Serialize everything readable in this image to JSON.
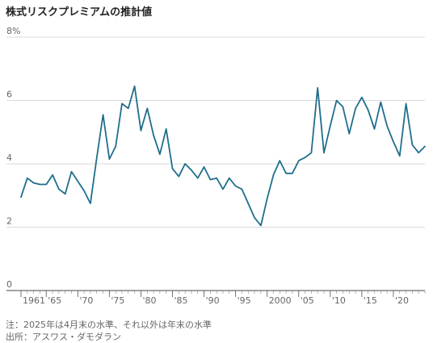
{
  "title": "株式リスクプレミアムの推計値",
  "chart_data": {
    "type": "line",
    "title": "株式リスクプレミアムの推計値",
    "xlabel": "",
    "ylabel": "",
    "xlim": [
      1961,
      2025
    ],
    "ylim": [
      0,
      8
    ],
    "y_ticks": [
      {
        "value": 8,
        "label": "8%"
      },
      {
        "value": 6,
        "label": "6"
      },
      {
        "value": 4,
        "label": "4"
      },
      {
        "value": 2,
        "label": "2"
      },
      {
        "value": 0,
        "label": "0"
      }
    ],
    "x_ticks": [
      {
        "value": 1961,
        "label": "1961"
      },
      {
        "value": 1965,
        "label": "'65"
      },
      {
        "value": 1970,
        "label": "'70"
      },
      {
        "value": 1975,
        "label": "'75"
      },
      {
        "value": 1980,
        "label": "'80"
      },
      {
        "value": 1985,
        "label": "'85"
      },
      {
        "value": 1990,
        "label": "'90"
      },
      {
        "value": 1995,
        "label": "'95"
      },
      {
        "value": 2000,
        "label": "2000"
      },
      {
        "value": 2005,
        "label": "'05"
      },
      {
        "value": 2010,
        "label": "'10"
      },
      {
        "value": 2015,
        "label": "'15"
      },
      {
        "value": 2020,
        "label": "'20"
      }
    ],
    "grid": true,
    "color": "#1f6e8c",
    "series": [
      {
        "x": [
          1961,
          1962,
          1963,
          1964,
          1965,
          1966,
          1967,
          1968,
          1969,
          1970,
          1971,
          1972,
          1973,
          1974,
          1975,
          1976,
          1977,
          1978,
          1979,
          1980,
          1981,
          1982,
          1983,
          1984,
          1985,
          1986,
          1987,
          1988,
          1989,
          1990,
          1991,
          1992,
          1993,
          1994,
          1995,
          1996,
          1997,
          1998,
          1999,
          2000,
          2001,
          2002,
          2003,
          2004,
          2005,
          2006,
          2007,
          2008,
          2009,
          2010,
          2011,
          2012,
          2013,
          2014,
          2015,
          2016,
          2017,
          2018,
          2019,
          2020,
          2021,
          2022,
          2023,
          2024,
          2025
        ],
        "values": [
          2.95,
          3.55,
          3.4,
          3.35,
          3.35,
          3.65,
          3.2,
          3.05,
          3.75,
          3.45,
          3.15,
          2.75,
          4.2,
          5.55,
          4.15,
          4.55,
          5.9,
          5.75,
          6.45,
          5.05,
          5.75,
          4.9,
          4.3,
          5.1,
          3.85,
          3.6,
          4.0,
          3.8,
          3.55,
          3.9,
          3.5,
          3.55,
          3.2,
          3.55,
          3.3,
          3.2,
          2.75,
          2.3,
          2.05,
          2.9,
          3.65,
          4.1,
          3.7,
          3.7,
          4.1,
          4.2,
          4.35,
          6.4,
          4.35,
          5.2,
          6.0,
          5.8,
          4.95,
          5.75,
          6.1,
          5.7,
          5.1,
          5.95,
          5.2,
          4.7,
          4.25,
          5.9,
          4.6,
          4.35,
          4.55
        ]
      }
    ]
  },
  "notes": {
    "note1": "注：2025年は4月末の水準、それ以外は年末の水準",
    "note2": "出所：アスワス・ダモダラン"
  }
}
